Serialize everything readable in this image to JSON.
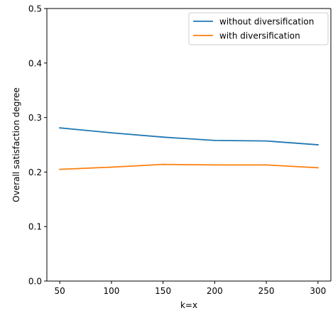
{
  "chart_data": {
    "type": "line",
    "title": "",
    "xlabel": "k=x",
    "ylabel": "Overall satisfaction degree",
    "xlim": [
      37.5,
      312.5
    ],
    "ylim": [
      0.0,
      0.5
    ],
    "xticks": [
      50,
      100,
      150,
      200,
      250,
      300
    ],
    "yticks": [
      0.0,
      0.1,
      0.2,
      0.3,
      0.4,
      0.5
    ],
    "xtick_labels": [
      "50",
      "100",
      "150",
      "200",
      "250",
      "300"
    ],
    "ytick_labels": [
      "0.0",
      "0.1",
      "0.2",
      "0.3",
      "0.4",
      "0.5"
    ],
    "grid": false,
    "legend_position": "top-right",
    "x": [
      50,
      100,
      150,
      200,
      250,
      300
    ],
    "series": [
      {
        "name": "without diversification",
        "color": "#1f77b4",
        "values": [
          0.281,
          0.272,
          0.264,
          0.258,
          0.257,
          0.25
        ]
      },
      {
        "name": "with diversification",
        "color": "#ff7f0e",
        "values": [
          0.205,
          0.209,
          0.214,
          0.213,
          0.213,
          0.208
        ]
      }
    ]
  }
}
